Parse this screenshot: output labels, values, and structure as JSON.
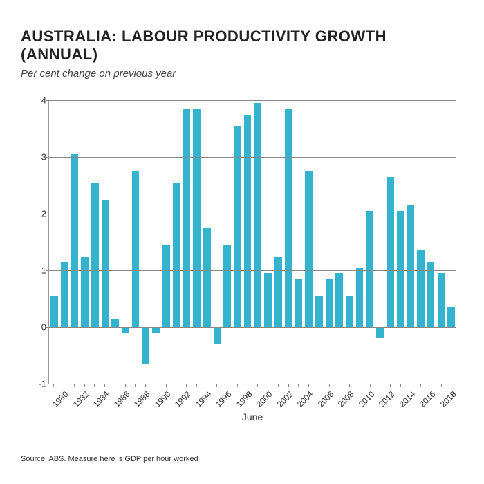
{
  "title": "AUSTRALIA: LABOUR PRODUCTIVITY GROWTH (ANNUAL)",
  "subtitle": "Per cent change on previous year",
  "xaxis_title": "June",
  "source": "Source: ABS. Measure here is GDP per hour worked",
  "chart": {
    "type": "bar",
    "bar_color": "#33b3ce",
    "background_color": "#ffffff",
    "grid_color": "#888888",
    "axis_color": "#999999",
    "text_color": "#333333",
    "title_fontsize": 22,
    "subtitle_fontsize": 15,
    "tick_fontsize": 13,
    "xlabel_fontsize": 12,
    "ylim": [
      -1,
      4
    ],
    "yticks": [
      -1,
      0,
      1,
      2,
      3,
      4
    ],
    "gridlines_at": [
      0,
      1,
      2,
      3,
      4
    ],
    "bar_width_ratio": 0.72,
    "years": [
      1979,
      1980,
      1981,
      1982,
      1983,
      1984,
      1985,
      1986,
      1987,
      1988,
      1989,
      1990,
      1991,
      1992,
      1993,
      1994,
      1995,
      1996,
      1997,
      1998,
      1999,
      2000,
      2001,
      2002,
      2003,
      2004,
      2005,
      2006,
      2007,
      2008,
      2009,
      2010,
      2011,
      2012,
      2013,
      2014,
      2015,
      2016,
      2017,
      2018
    ],
    "values": [
      0.55,
      1.15,
      3.05,
      1.25,
      2.55,
      2.25,
      0.15,
      -0.1,
      2.75,
      -0.65,
      -0.1,
      1.45,
      2.55,
      3.85,
      3.85,
      1.75,
      -0.3,
      1.45,
      3.55,
      3.75,
      3.95,
      0.95,
      1.25,
      3.85,
      0.85,
      2.75,
      0.55,
      0.85,
      0.95,
      0.55,
      1.05,
      2.05,
      -0.2,
      2.65,
      2.05,
      2.15,
      1.35,
      1.15,
      0.95,
      0.35
    ],
    "xlabels_at": [
      1980,
      1982,
      1984,
      1986,
      1988,
      1990,
      1992,
      1994,
      1996,
      1998,
      2000,
      2002,
      2004,
      2006,
      2008,
      2010,
      2012,
      2014,
      2016,
      2018
    ]
  }
}
